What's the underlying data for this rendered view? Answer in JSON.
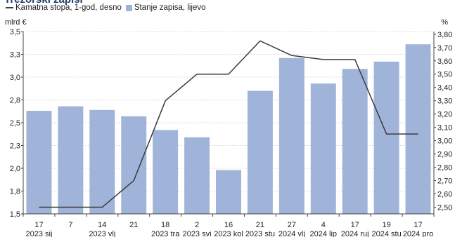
{
  "header": {
    "title": "Trezorski zapisi",
    "legend": [
      {
        "label": "Kamatna stopa, 1-god, desno",
        "kind": "line",
        "color": "#3a3a3a"
      },
      {
        "label": "Stanje zapisa, lijevo",
        "kind": "bar",
        "color": "#a0b3d8"
      }
    ],
    "unit_left": "mlrd €",
    "unit_right": "%"
  },
  "chart_data": {
    "type": "bar",
    "categories": [
      "17",
      "7",
      "14",
      "21",
      "18",
      "2",
      "16",
      "21",
      "27",
      "4",
      "17",
      "19",
      "17"
    ],
    "category_groups": [
      {
        "label": "2023 sij",
        "index": 0
      },
      {
        "label": "2023 vlj",
        "index": 2
      },
      {
        "label": "2023 tra",
        "index": 4
      },
      {
        "label": "2023 svi",
        "index": 5
      },
      {
        "label": "2023 kol",
        "index": 6
      },
      {
        "label": "2023 stu",
        "index": 7
      },
      {
        "label": "2024 vlj",
        "index": 8
      },
      {
        "label": "2024 lip",
        "index": 9
      },
      {
        "label": "2024 ruj",
        "index": 10
      },
      {
        "label": "2024 stu",
        "index": 11
      },
      {
        "label": "2024 pro",
        "index": 12
      }
    ],
    "series": [
      {
        "name": "Stanje zapisa, lijevo",
        "axis": "left",
        "type": "bar",
        "color": "#a0b3d8",
        "values": [
          2.63,
          2.68,
          2.64,
          2.57,
          2.42,
          2.34,
          1.98,
          2.85,
          3.21,
          2.93,
          3.09,
          3.17,
          3.36
        ]
      },
      {
        "name": "Kamatna stopa, 1-god, desno",
        "axis": "right",
        "type": "line",
        "color": "#3a3a3a",
        "values": [
          2.5,
          2.5,
          2.5,
          2.7,
          3.3,
          3.5,
          3.5,
          3.75,
          3.64,
          3.61,
          3.61,
          3.05,
          3.05
        ]
      }
    ],
    "y_left": {
      "min": 1.5,
      "max": 3.5,
      "ticks": [
        1.5,
        1.75,
        2.0,
        2.25,
        2.5,
        2.75,
        3.0,
        3.25,
        3.5
      ],
      "tick_labels": [
        "1,5",
        "1,8",
        "2,0",
        "2,3",
        "2,5",
        "2,8",
        "3,0",
        "3,3",
        "3,5"
      ]
    },
    "y_right": {
      "min": 2.45,
      "max": 3.82,
      "ticks": [
        2.5,
        2.6,
        2.7,
        2.8,
        2.9,
        3.0,
        3.1,
        3.2,
        3.3,
        3.4,
        3.5,
        3.6,
        3.7,
        3.8
      ],
      "tick_labels": [
        "2,50",
        "2,60",
        "2,70",
        "2,80",
        "2,90",
        "3,00",
        "3,10",
        "3,20",
        "3,30",
        "3,40",
        "3,50",
        "3,60",
        "3,70",
        "3,80"
      ]
    },
    "grid": true,
    "legend_position": "top-left"
  }
}
